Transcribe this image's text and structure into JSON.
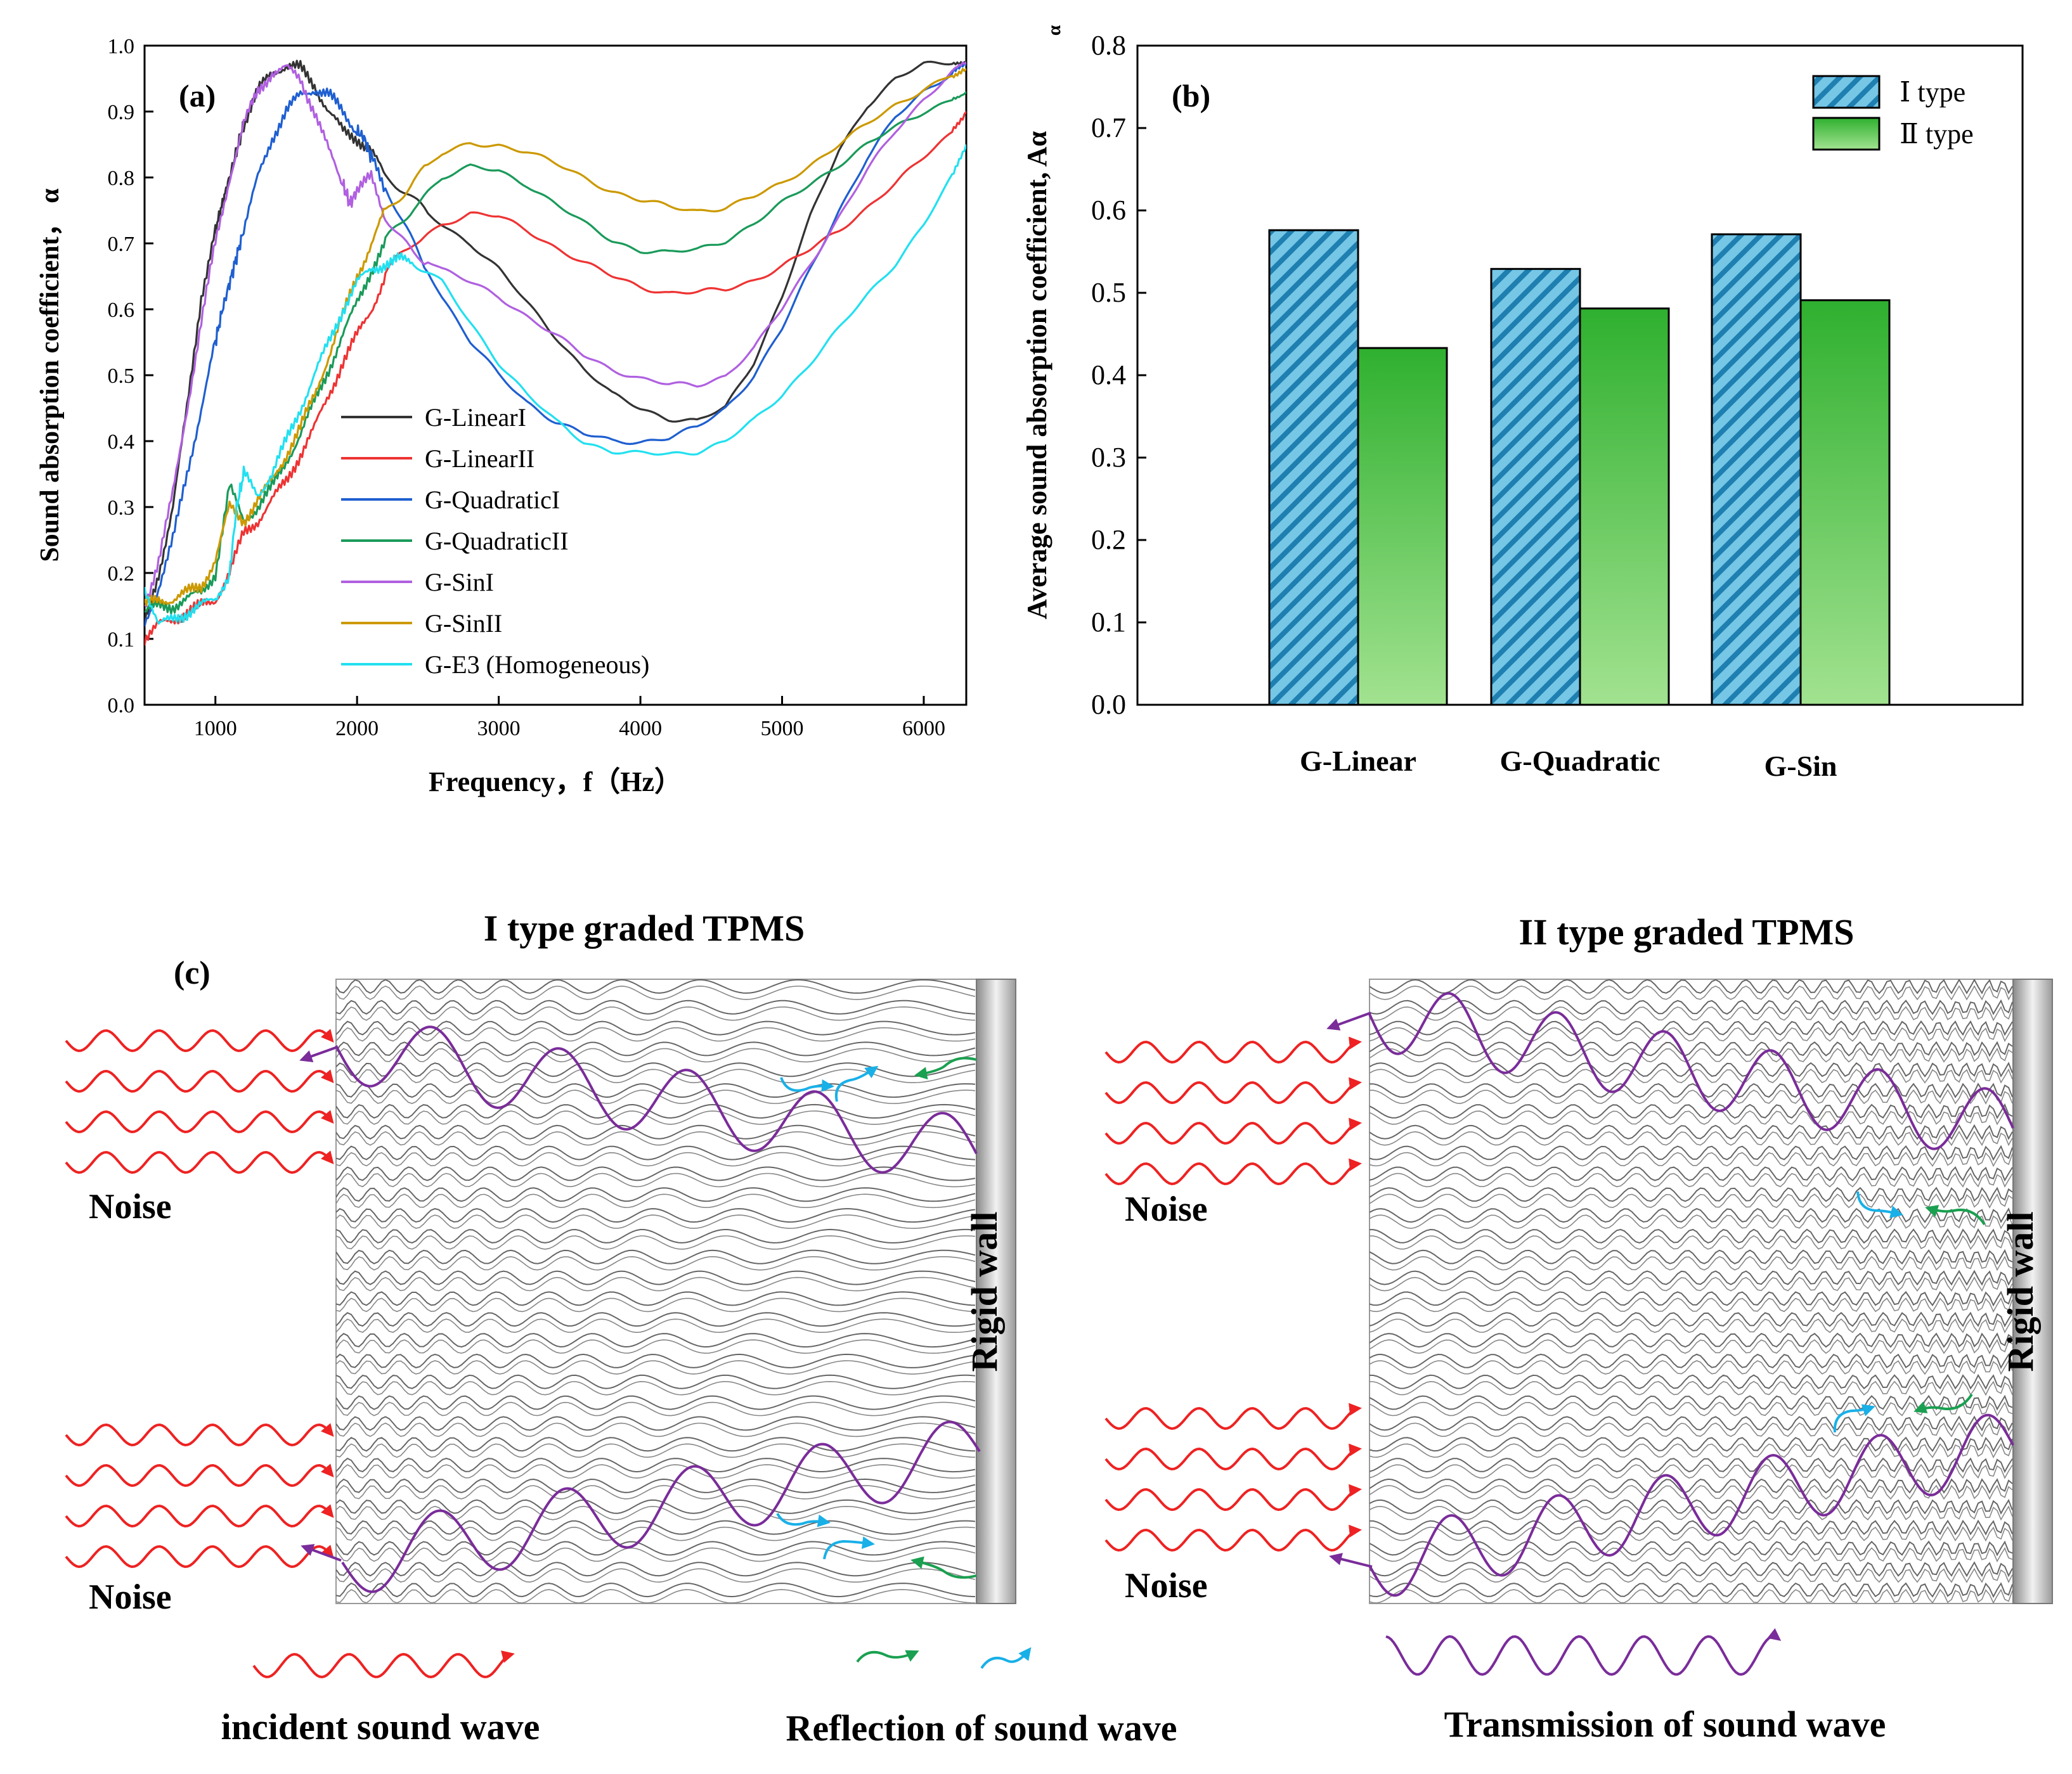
{
  "chart_data": [
    {
      "panel": "(a)",
      "type": "line",
      "xlabel": "Frequency，f（Hz）",
      "ylabel": "Sound absorption coefficient， α",
      "xlim": [
        500,
        6300
      ],
      "ylim": [
        0.0,
        1.0
      ],
      "xticks": [
        "1000",
        "2000",
        "3000",
        "4000",
        "5000",
        "6000"
      ],
      "yticks": [
        "0.0",
        "0.1",
        "0.2",
        "0.3",
        "0.4",
        "0.5",
        "0.6",
        "0.7",
        "0.8",
        "0.9",
        "1.0"
      ],
      "legend_position": "center-bottom",
      "series": [
        {
          "name": "G-LinearI",
          "color": "#333333",
          "x": [
            500,
            600,
            700,
            800,
            900,
            1000,
            1050,
            1100,
            1150,
            1200,
            1300,
            1400,
            1500,
            1600,
            1700,
            1800,
            1900,
            2000,
            2100,
            2200,
            2400,
            2600,
            2800,
            3000,
            3200,
            3400,
            3600,
            3800,
            4000,
            4200,
            4400,
            4600,
            4800,
            5000,
            5200,
            5400,
            5600,
            5800,
            6000,
            6200,
            6300
          ],
          "y": [
            0.12,
            0.2,
            0.3,
            0.45,
            0.62,
            0.72,
            0.76,
            0.8,
            0.84,
            0.88,
            0.93,
            0.96,
            0.97,
            0.965,
            0.94,
            0.9,
            0.87,
            0.86,
            0.84,
            0.8,
            0.76,
            0.73,
            0.7,
            0.66,
            0.61,
            0.56,
            0.51,
            0.47,
            0.45,
            0.435,
            0.43,
            0.45,
            0.52,
            0.62,
            0.74,
            0.84,
            0.91,
            0.95,
            0.97,
            0.975,
            0.97
          ]
        },
        {
          "name": "G-LinearII",
          "color": "#ee3333",
          "x": [
            500,
            600,
            700,
            800,
            900,
            1000,
            1100,
            1200,
            1300,
            1400,
            1500,
            1600,
            1700,
            1800,
            1900,
            2000,
            2100,
            2200,
            2400,
            2600,
            2800,
            3000,
            3200,
            3400,
            3600,
            3800,
            4000,
            4200,
            4400,
            4600,
            4800,
            5000,
            5200,
            5400,
            5600,
            5800,
            6000,
            6200,
            6300
          ],
          "y": [
            0.1,
            0.12,
            0.13,
            0.14,
            0.15,
            0.16,
            0.2,
            0.26,
            0.28,
            0.31,
            0.34,
            0.38,
            0.42,
            0.47,
            0.52,
            0.56,
            0.6,
            0.65,
            0.7,
            0.73,
            0.745,
            0.74,
            0.72,
            0.695,
            0.67,
            0.65,
            0.635,
            0.625,
            0.625,
            0.63,
            0.645,
            0.665,
            0.69,
            0.72,
            0.755,
            0.79,
            0.83,
            0.87,
            0.9
          ]
        },
        {
          "name": "G-QuadraticI",
          "color": "#1f5fd0",
          "x": [
            500,
            600,
            700,
            800,
            900,
            1000,
            1050,
            1100,
            1150,
            1200,
            1300,
            1400,
            1500,
            1600,
            1700,
            1800,
            1900,
            2000,
            2050,
            2100,
            2200,
            2400,
            2600,
            2800,
            3000,
            3200,
            3400,
            3600,
            3800,
            4000,
            4200,
            4400,
            4600,
            4800,
            5000,
            5200,
            5400,
            5600,
            5800,
            6000,
            6200,
            6300
          ],
          "y": [
            0.12,
            0.18,
            0.25,
            0.35,
            0.45,
            0.55,
            0.6,
            0.64,
            0.68,
            0.72,
            0.8,
            0.86,
            0.9,
            0.925,
            0.935,
            0.925,
            0.9,
            0.87,
            0.86,
            0.83,
            0.78,
            0.7,
            0.62,
            0.55,
            0.5,
            0.46,
            0.43,
            0.41,
            0.4,
            0.4,
            0.405,
            0.42,
            0.45,
            0.5,
            0.57,
            0.66,
            0.75,
            0.83,
            0.89,
            0.93,
            0.96,
            0.97
          ]
        },
        {
          "name": "G-QuadraticII",
          "color": "#1a9a5a",
          "x": [
            500,
            600,
            700,
            800,
            900,
            1000,
            1100,
            1200,
            1300,
            1400,
            1500,
            1600,
            1700,
            1800,
            1900,
            2000,
            2100,
            2200,
            2400,
            2600,
            2800,
            3000,
            3200,
            3400,
            3600,
            3800,
            4000,
            4200,
            4400,
            4600,
            4800,
            5000,
            5200,
            5400,
            5600,
            5800,
            6000,
            6200,
            6300
          ],
          "y": [
            0.14,
            0.15,
            0.15,
            0.16,
            0.17,
            0.2,
            0.33,
            0.28,
            0.3,
            0.33,
            0.37,
            0.41,
            0.46,
            0.51,
            0.56,
            0.61,
            0.66,
            0.7,
            0.76,
            0.8,
            0.815,
            0.81,
            0.79,
            0.76,
            0.73,
            0.705,
            0.69,
            0.685,
            0.69,
            0.705,
            0.73,
            0.76,
            0.79,
            0.82,
            0.85,
            0.875,
            0.9,
            0.92,
            0.93
          ]
        },
        {
          "name": "G-SinI",
          "color": "#b060e0",
          "x": [
            500,
            600,
            700,
            800,
            900,
            1000,
            1100,
            1200,
            1300,
            1400,
            1500,
            1600,
            1700,
            1800,
            1900,
            1950,
            2000,
            2100,
            2200,
            2400,
            2600,
            2800,
            3000,
            3200,
            3400,
            3600,
            3800,
            4000,
            4200,
            4400,
            4600,
            4800,
            5000,
            5200,
            5400,
            5600,
            5800,
            6000,
            6200,
            6300
          ],
          "y": [
            0.15,
            0.22,
            0.32,
            0.45,
            0.58,
            0.7,
            0.8,
            0.88,
            0.93,
            0.96,
            0.965,
            0.95,
            0.9,
            0.84,
            0.79,
            0.76,
            0.78,
            0.8,
            0.74,
            0.69,
            0.66,
            0.64,
            0.62,
            0.59,
            0.56,
            0.53,
            0.51,
            0.495,
            0.485,
            0.485,
            0.5,
            0.54,
            0.6,
            0.67,
            0.74,
            0.81,
            0.87,
            0.92,
            0.96,
            0.975
          ]
        },
        {
          "name": "G-SinII",
          "color": "#cc9900",
          "x": [
            500,
            600,
            700,
            800,
            900,
            1000,
            1100,
            1200,
            1300,
            1400,
            1500,
            1600,
            1700,
            1800,
            1900,
            2000,
            2100,
            2200,
            2400,
            2600,
            2800,
            3000,
            3200,
            3400,
            3600,
            3800,
            4000,
            4200,
            4400,
            4600,
            4800,
            5000,
            5200,
            5400,
            5600,
            5800,
            6000,
            6200,
            6300
          ],
          "y": [
            0.15,
            0.16,
            0.16,
            0.17,
            0.18,
            0.22,
            0.3,
            0.28,
            0.31,
            0.34,
            0.38,
            0.42,
            0.47,
            0.53,
            0.59,
            0.65,
            0.7,
            0.75,
            0.8,
            0.835,
            0.85,
            0.85,
            0.84,
            0.82,
            0.8,
            0.78,
            0.765,
            0.755,
            0.75,
            0.755,
            0.77,
            0.79,
            0.82,
            0.85,
            0.88,
            0.91,
            0.935,
            0.955,
            0.965
          ]
        },
        {
          "name": "G-E3 (Homogeneous)",
          "color": "#22e0f0",
          "x": [
            500,
            600,
            700,
            800,
            900,
            1000,
            1100,
            1150,
            1200,
            1300,
            1400,
            1500,
            1600,
            1700,
            1800,
            1900,
            2000,
            2100,
            2200,
            2300,
            2400,
            2600,
            2800,
            3000,
            3200,
            3400,
            3600,
            3800,
            4000,
            4200,
            4400,
            4600,
            4800,
            5000,
            5200,
            5400,
            5600,
            5800,
            6000,
            6200,
            6300
          ],
          "y": [
            0.18,
            0.12,
            0.13,
            0.14,
            0.15,
            0.16,
            0.2,
            0.3,
            0.35,
            0.32,
            0.35,
            0.4,
            0.45,
            0.5,
            0.55,
            0.6,
            0.64,
            0.66,
            0.67,
            0.675,
            0.67,
            0.64,
            0.58,
            0.52,
            0.47,
            0.43,
            0.4,
            0.385,
            0.38,
            0.38,
            0.385,
            0.4,
            0.43,
            0.47,
            0.52,
            0.57,
            0.62,
            0.67,
            0.73,
            0.8,
            0.85
          ]
        }
      ]
    },
    {
      "panel": "(b)",
      "type": "bar",
      "ylabel": "Average sound absorption coefficient, Aα",
      "ylim": [
        0.0,
        0.8
      ],
      "yticks": [
        "0.0",
        "0.1",
        "0.2",
        "0.3",
        "0.4",
        "0.5",
        "0.6",
        "0.7",
        "0.8"
      ],
      "categories": [
        "G-Linear",
        "G-Quadratic",
        "G-Sin"
      ],
      "legend_position": "top-right",
      "series": [
        {
          "name": "Ⅰ type",
          "values": [
            0.576,
            0.529,
            0.571
          ],
          "color": "#3aa9d6",
          "pattern": "hatched"
        },
        {
          "name": "Ⅱ type",
          "values": [
            0.433,
            0.481,
            0.491
          ],
          "color": "#4cbc4c",
          "pattern": "gradient"
        }
      ]
    }
  ],
  "panel_a_label": "(a)",
  "panel_a_x_ticks": [
    "1000",
    "2000",
    "3000",
    "4000",
    "5000",
    "6000"
  ],
  "panel_b_label": "(b)",
  "panel_b_subscript": "α",
  "panel_c": {
    "label": "(c)",
    "left_title": "I type graded TPMS",
    "right_title": "II type graded TPMS",
    "noise": "Noise",
    "wall": "Rigid wall",
    "legend_incident": "incident sound wave",
    "legend_reflection": "Reflection of sound wave",
    "legend_transmission": "Transmission of sound wave",
    "colors": {
      "incident": "#ee2222",
      "reflect_green": "#1aa050",
      "reflect_blue": "#19b0e8",
      "transmit": "#7a2c9a"
    }
  }
}
